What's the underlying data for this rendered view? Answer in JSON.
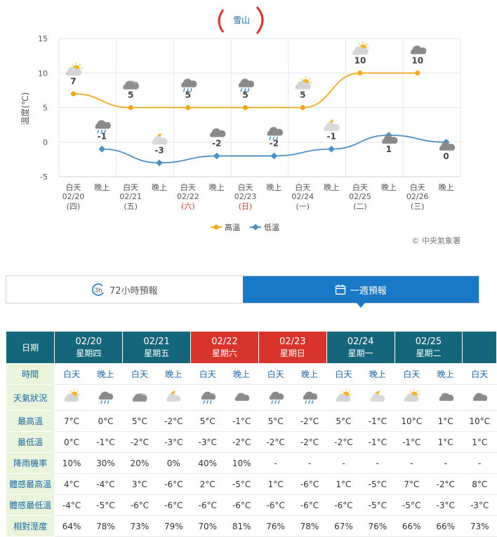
{
  "location": "雪山",
  "chart_data": {
    "type": "line",
    "ylabel": "溫度(℃)",
    "ylim": [
      -5,
      15
    ],
    "yticks": [
      -5,
      0,
      5,
      10,
      15
    ],
    "x_labels": [
      {
        "l1": "白天",
        "l2": "02/20",
        "l3": "(四)",
        "red": false
      },
      {
        "l1": "晚上",
        "l2": "",
        "l3": "",
        "red": false
      },
      {
        "l1": "白天",
        "l2": "02/21",
        "l3": "(五)",
        "red": false
      },
      {
        "l1": "晚上",
        "l2": "",
        "l3": "",
        "red": false
      },
      {
        "l1": "白天",
        "l2": "02/22",
        "l3": "(六)",
        "red": true
      },
      {
        "l1": "晚上",
        "l2": "",
        "l3": "",
        "red": false
      },
      {
        "l1": "白天",
        "l2": "02/23",
        "l3": "(日)",
        "red": true
      },
      {
        "l1": "晚上",
        "l2": "",
        "l3": "",
        "red": false
      },
      {
        "l1": "白天",
        "l2": "02/24",
        "l3": "(一)",
        "red": false
      },
      {
        "l1": "晚上",
        "l2": "",
        "l3": "",
        "red": false
      },
      {
        "l1": "白天",
        "l2": "02/25",
        "l3": "(二)",
        "red": false
      },
      {
        "l1": "晚上",
        "l2": "",
        "l3": "",
        "red": false
      },
      {
        "l1": "白天",
        "l2": "02/26",
        "l3": "(三)",
        "red": false
      },
      {
        "l1": "晚上",
        "l2": "",
        "l3": "",
        "red": false
      }
    ],
    "series": [
      {
        "name": "高溫",
        "color": "#f0a81e",
        "slots": [
          0,
          2,
          4,
          6,
          8,
          10,
          12
        ],
        "values": [
          7,
          5,
          5,
          5,
          5,
          10,
          10
        ]
      },
      {
        "name": "低溫",
        "color": "#4a90c4",
        "slots": [
          1,
          3,
          5,
          7,
          9,
          11,
          13
        ],
        "values": [
          -1,
          -3,
          -2,
          -2,
          -1,
          1,
          0
        ]
      }
    ],
    "point_icons": [
      {
        "slot": 0,
        "icon": "partly-cloudy-icon"
      },
      {
        "slot": 1,
        "icon": "cloud-rain-icon"
      },
      {
        "slot": 2,
        "icon": "cloudy-icon"
      },
      {
        "slot": 3,
        "icon": "cloudy-night-icon"
      },
      {
        "slot": 4,
        "icon": "cloud-rain-icon"
      },
      {
        "slot": 5,
        "icon": "dark-cloud-icon"
      },
      {
        "slot": 6,
        "icon": "cloud-rain-icon"
      },
      {
        "slot": 7,
        "icon": "cloud-rain-icon"
      },
      {
        "slot": 8,
        "icon": "partly-cloudy-icon"
      },
      {
        "slot": 9,
        "icon": "cloudy-night-icon"
      },
      {
        "slot": 10,
        "icon": "partly-cloudy-icon"
      },
      {
        "slot": 11,
        "icon": "dark-cloud-icon"
      },
      {
        "slot": 12,
        "icon": "dark-cloud-icon"
      },
      {
        "slot": 13,
        "icon": "dark-cloud-icon"
      }
    ],
    "legend_position": "bottom-center",
    "credit": "© 中央氣象署"
  },
  "tabs": [
    {
      "label": "72小時預報",
      "icon_text": "3h",
      "active": false
    },
    {
      "label": "一週預報",
      "active": true
    }
  ],
  "table": {
    "corner": "日期",
    "days": [
      {
        "date": "02/20",
        "weekday": "星期四",
        "red": false
      },
      {
        "date": "02/21",
        "weekday": "星期五",
        "red": false
      },
      {
        "date": "02/22",
        "weekday": "星期六",
        "red": true
      },
      {
        "date": "02/23",
        "weekday": "星期日",
        "red": true
      },
      {
        "date": "02/24",
        "weekday": "星期一",
        "red": false
      },
      {
        "date": "02/25",
        "weekday": "星期二",
        "red": false
      },
      {
        "date": "",
        "weekday": "",
        "red": false
      }
    ],
    "row_labels": {
      "period": "時間",
      "weather": "天氣狀況",
      "max": "最高溫",
      "min": "最低溫",
      "pop": "降雨機率",
      "feel_max": "體感最高溫",
      "feel_min": "體感最低溫",
      "rh": "相對溼度"
    },
    "periods": [
      "白天",
      "晚上",
      "白天",
      "晚上",
      "白天",
      "晚上",
      "白天",
      "晚上",
      "白天",
      "晚上",
      "白天",
      "晚上",
      "白天"
    ],
    "weather_icons": [
      "partly-cloudy-icon",
      "cloud-rain-icon",
      "cloudy-icon",
      "cloudy-night-icon",
      "cloud-rain-icon",
      "dark-cloud-icon",
      "cloud-rain-icon",
      "cloud-rain-icon",
      "partly-cloudy-icon",
      "cloudy-night-icon",
      "partly-cloudy-icon",
      "dark-cloud-icon",
      "dark-cloud-icon"
    ],
    "max": [
      "7°C",
      "0°C",
      "5°C",
      "-2°C",
      "5°C",
      "-1°C",
      "5°C",
      "-2°C",
      "5°C",
      "-1°C",
      "10°C",
      "1°C",
      "10°C"
    ],
    "min": [
      "0°C",
      "-1°C",
      "-2°C",
      "-3°C",
      "-3°C",
      "-2°C",
      "-2°C",
      "-2°C",
      "-2°C",
      "-1°C",
      "-1°C",
      "1°C",
      "1°C"
    ],
    "pop": [
      "10%",
      "30%",
      "20%",
      "0%",
      "40%",
      "10%",
      "-",
      "-",
      "-",
      "-",
      "-",
      "-",
      "-"
    ],
    "feel_max": [
      "4°C",
      "-4°C",
      "3°C",
      "-6°C",
      "2°C",
      "-5°C",
      "1°C",
      "-6°C",
      "1°C",
      "-5°C",
      "7°C",
      "-2°C",
      "8°C"
    ],
    "feel_min": [
      "-4°C",
      "-5°C",
      "-6°C",
      "-6°C",
      "-6°C",
      "-6°C",
      "-6°C",
      "-6°C",
      "-6°C",
      "-5°C",
      "-5°C",
      "-3°C",
      "-3°C"
    ],
    "rh": [
      "64%",
      "78%",
      "73%",
      "79%",
      "70%",
      "81%",
      "76%",
      "78%",
      "67%",
      "76%",
      "66%",
      "66%",
      "73%"
    ]
  }
}
